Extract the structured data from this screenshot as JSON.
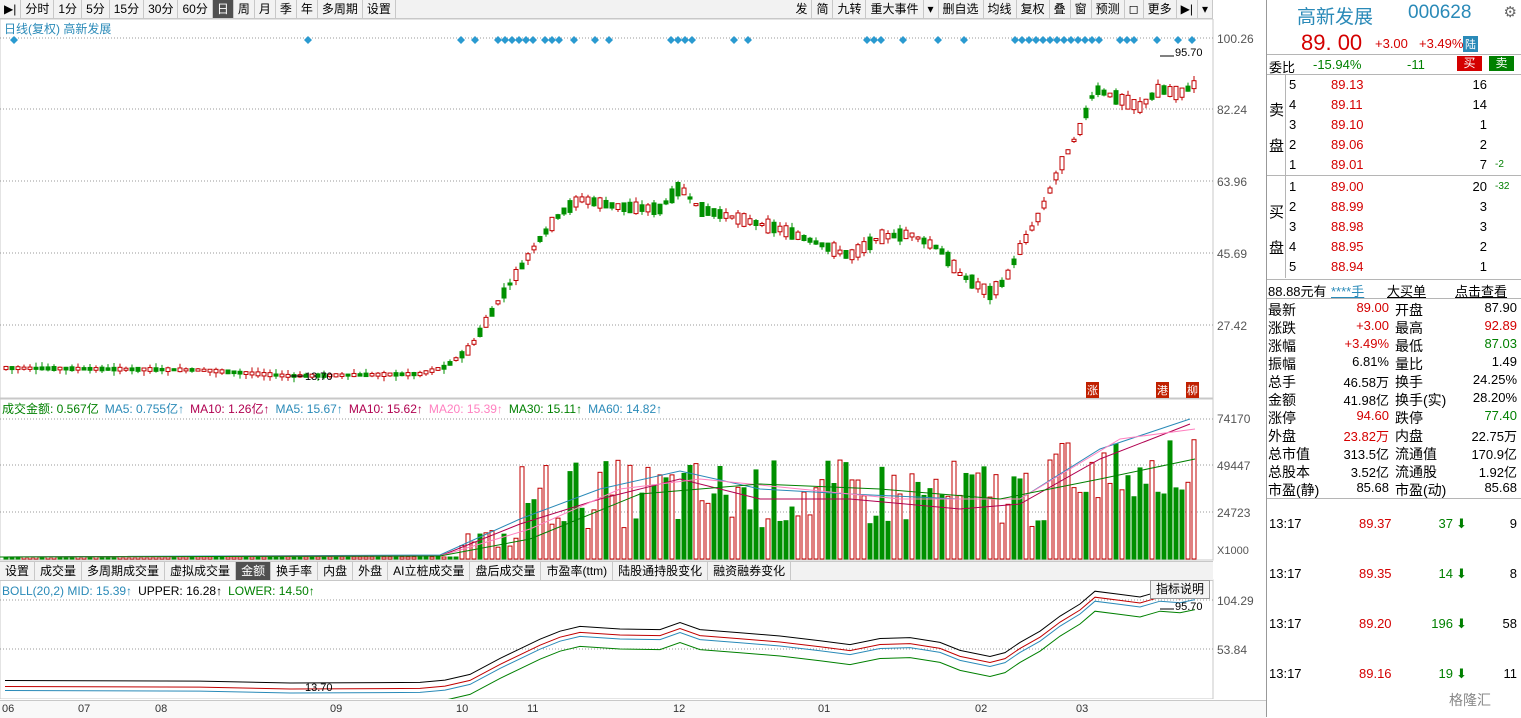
{
  "toolbar": {
    "left": [
      "分时",
      "1分",
      "5分",
      "15分",
      "30分",
      "60分",
      "日",
      "周",
      "月",
      "季",
      "年",
      "多周期",
      "设置"
    ],
    "right": [
      "发",
      "简",
      "九转",
      "重大事件",
      "▾",
      "删自选",
      "均线",
      "复权",
      "叠",
      "窗",
      "预测",
      "◻",
      "更多",
      "▶|",
      "▾"
    ],
    "active": "日"
  },
  "chart": {
    "title": "日线(复权)  高新发展",
    "y_labels": [
      "100.26",
      "82.24",
      "63.96",
      "45.69",
      "27.42"
    ],
    "hi_label": "95.70",
    "lo_label": "13.70",
    "event_tags": [
      "涨",
      "港",
      "柳"
    ]
  },
  "volume": {
    "indicators": [
      {
        "text": "成交金额: 0.567亿",
        "color": "#008000"
      },
      {
        "text": "MA5: 0.755亿↑",
        "color": "#2a8ab8"
      },
      {
        "text": "MA10: 1.26亿↑",
        "color": "#b00050"
      },
      {
        "text": "MA5: 15.67↑",
        "color": "#2a8ab8"
      },
      {
        "text": "MA10: 15.62↑",
        "color": "#b00050"
      },
      {
        "text": "MA20: 15.39↑",
        "color": "#ff80c0"
      },
      {
        "text": "MA30: 15.11↑",
        "color": "#008000"
      },
      {
        "text": "MA60: 14.82↑",
        "color": "#2a8ab8"
      }
    ],
    "y_labels": [
      "74170",
      "49447",
      "24723"
    ],
    "unit": "X1000"
  },
  "bottom_tabs": [
    "设置",
    "成交量",
    "多周期成交量",
    "虚拟成交量",
    "金额",
    "换手率",
    "内盘",
    "外盘",
    "AI立桩成交量",
    "盘后成交量",
    "市盈率(ttm)",
    "陆股通持股变化",
    "融资融券变化"
  ],
  "bottom_tabs_active": "金额",
  "boll": {
    "indicators": [
      {
        "text": "BOLL(20,2) MID: 15.39↑",
        "color": "#2a8ab8"
      },
      {
        "text": "UPPER: 16.28↑",
        "color": "#000000"
      },
      {
        "text": "LOWER: 14.50↑",
        "color": "#008000"
      }
    ],
    "y_labels": [
      "104.29",
      "53.84"
    ],
    "hi_label": "95.70",
    "lo_label": "13.70",
    "button": "指标说明"
  },
  "months": [
    "06",
    "07",
    "08",
    "09",
    "10",
    "11",
    "12",
    "01",
    "02",
    "03"
  ],
  "panel": {
    "name": "高新发展",
    "code": "000628",
    "price": "89. 00",
    "change": "+3.00",
    "pct": "+3.49%",
    "tag": "陆",
    "wb_label": "委比",
    "wb_pct": "-15.94%",
    "wb_diff": "-11",
    "buy_btn": "买",
    "sell_btn": "卖",
    "sell_side_label": [
      "卖",
      "盘"
    ],
    "buy_side_label": [
      "买",
      "盘"
    ],
    "asks": [
      {
        "lvl": "5",
        "price": "89.13",
        "vol": "16",
        "chg": ""
      },
      {
        "lvl": "4",
        "price": "89.11",
        "vol": "14",
        "chg": ""
      },
      {
        "lvl": "3",
        "price": "89.10",
        "vol": "1",
        "chg": ""
      },
      {
        "lvl": "2",
        "price": "89.06",
        "vol": "2",
        "chg": ""
      },
      {
        "lvl": "1",
        "price": "89.01",
        "vol": "7",
        "chg": "-2"
      }
    ],
    "bids": [
      {
        "lvl": "1",
        "price": "89.00",
        "vol": "20",
        "chg": "-32"
      },
      {
        "lvl": "2",
        "price": "88.99",
        "vol": "3",
        "chg": ""
      },
      {
        "lvl": "3",
        "price": "88.98",
        "vol": "3",
        "chg": ""
      },
      {
        "lvl": "4",
        "price": "88.95",
        "vol": "2",
        "chg": ""
      },
      {
        "lvl": "5",
        "price": "88.94",
        "vol": "1",
        "chg": ""
      }
    ],
    "bigorder": {
      "a": "88.88元有",
      "b": "****手",
      "c": "大买单",
      "d": "点击查看"
    },
    "stats": [
      [
        "最新",
        "89.00",
        "开盘",
        "87.90"
      ],
      [
        "涨跌",
        "+3.00",
        "最高",
        "92.89"
      ],
      [
        "涨幅",
        "+3.49%",
        "最低",
        "87.03"
      ],
      [
        "振幅",
        "6.81%",
        "量比",
        "1.49"
      ],
      [
        "总手",
        "46.58万",
        "换手",
        "24.25%"
      ],
      [
        "金额",
        "41.98亿",
        "换手(实)",
        "28.20%"
      ],
      [
        "涨停",
        "94.60",
        "跌停",
        "77.40"
      ],
      [
        "外盘",
        "23.82万",
        "内盘",
        "22.75万"
      ],
      [
        "总市值",
        "313.5亿",
        "流通值",
        "170.9亿"
      ],
      [
        "总股本",
        "3.52亿",
        "流通股",
        "1.92亿"
      ],
      [
        "市盈(静)",
        "85.68",
        "市盈(动)",
        "85.68"
      ]
    ],
    "ticks": [
      {
        "time": "13:17",
        "price": "89.37",
        "vol": "37",
        "n": "9"
      },
      {
        "time": "13:17",
        "price": "89.35",
        "vol": "14",
        "n": "8"
      },
      {
        "time": "13:17",
        "price": "89.20",
        "vol": "196",
        "n": "58"
      },
      {
        "time": "13:17",
        "price": "89.16",
        "vol": "19",
        "n": "11"
      }
    ],
    "watermark": "格隆汇"
  }
}
